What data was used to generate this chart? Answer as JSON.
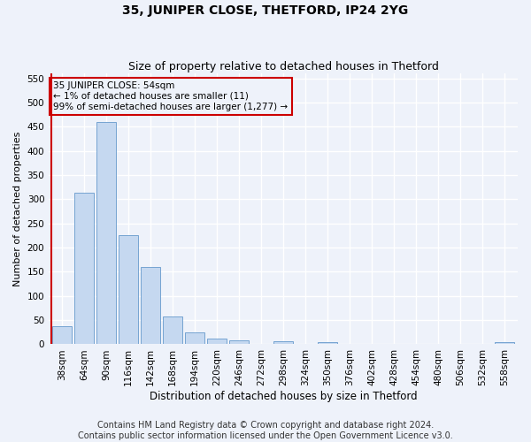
{
  "title": "35, JUNIPER CLOSE, THETFORD, IP24 2YG",
  "subtitle": "Size of property relative to detached houses in Thetford",
  "xlabel": "Distribution of detached houses by size in Thetford",
  "ylabel": "Number of detached properties",
  "categories": [
    "38sqm",
    "64sqm",
    "90sqm",
    "116sqm",
    "142sqm",
    "168sqm",
    "194sqm",
    "220sqm",
    "246sqm",
    "272sqm",
    "298sqm",
    "324sqm",
    "350sqm",
    "376sqm",
    "402sqm",
    "428sqm",
    "454sqm",
    "480sqm",
    "506sqm",
    "532sqm",
    "558sqm"
  ],
  "values": [
    38,
    313,
    460,
    226,
    160,
    57,
    25,
    11,
    9,
    0,
    6,
    0,
    5,
    0,
    0,
    0,
    0,
    0,
    0,
    0,
    5
  ],
  "bar_color": "#c5d8f0",
  "bar_edge_color": "#6699cc",
  "annotation_line_color": "#cc0000",
  "annotation_box_text": "35 JUNIPER CLOSE: 54sqm\n← 1% of detached houses are smaller (11)\n99% of semi-detached houses are larger (1,277) →",
  "ylim": [
    0,
    560
  ],
  "yticks": [
    0,
    50,
    100,
    150,
    200,
    250,
    300,
    350,
    400,
    450,
    500,
    550
  ],
  "footer_line1": "Contains HM Land Registry data © Crown copyright and database right 2024.",
  "footer_line2": "Contains public sector information licensed under the Open Government Licence v3.0.",
  "bg_color": "#eef2fa",
  "grid_color": "#ffffff",
  "title_fontsize": 10,
  "subtitle_fontsize": 9,
  "xlabel_fontsize": 8.5,
  "ylabel_fontsize": 8,
  "tick_fontsize": 7.5,
  "footer_fontsize": 7,
  "annotation_fontsize": 7.5
}
